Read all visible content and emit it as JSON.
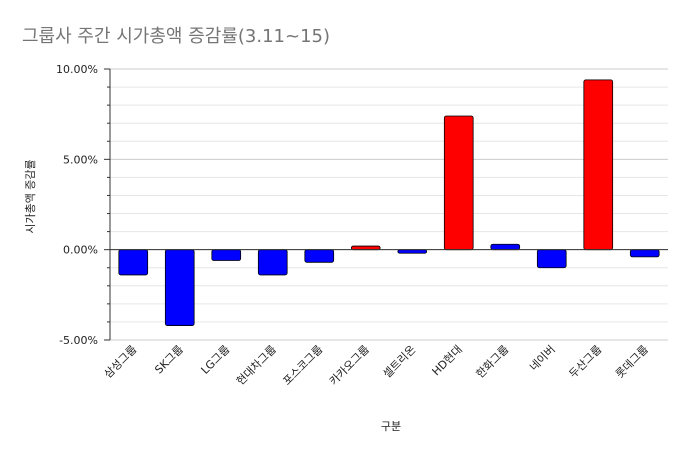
{
  "chart_data": {
    "type": "bar",
    "title": "그룹사 주간 시가총액 증감률(3.11~15)",
    "xlabel": "구분",
    "ylabel": "시가총액 증감률",
    "categories": [
      "삼성그룹",
      "SK그룹",
      "LG그룹",
      "현대차그룹",
      "포스코그룹",
      "카카오그룹",
      "셀트리온",
      "HD현대",
      "한화그룹",
      "네이버",
      "두산그룹",
      "롯데그룹"
    ],
    "values": [
      -1.4,
      -4.2,
      -0.6,
      -1.4,
      -0.7,
      0.2,
      -0.2,
      7.4,
      0.3,
      -1.0,
      9.4,
      -0.4
    ],
    "colors": [
      "#0000ff",
      "#0000ff",
      "#0000ff",
      "#0000ff",
      "#0000ff",
      "#ff0000",
      "#0000ff",
      "#ff0000",
      "#0000ff",
      "#0000ff",
      "#ff0000",
      "#0000ff"
    ],
    "yticks": [
      -5,
      0,
      5,
      10
    ],
    "ytick_labels": [
      "-5.00%",
      "0.00%",
      "5.00%",
      "10.00%"
    ],
    "ylim": [
      -5,
      10
    ],
    "grid": true,
    "legend": "none"
  }
}
